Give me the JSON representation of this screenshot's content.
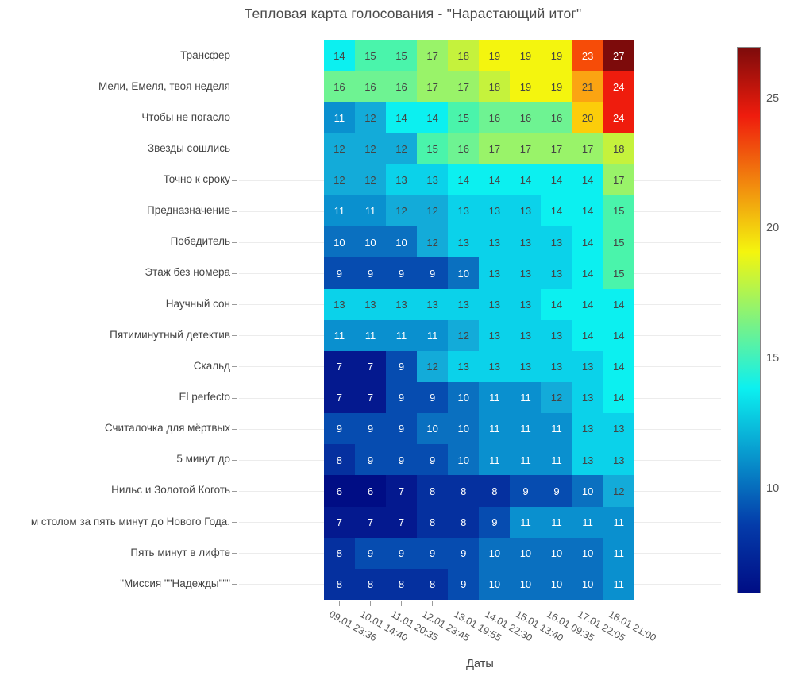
{
  "chart_data": {
    "type": "heatmap",
    "title": "Тепловая карта голосования - \"Нарастающий итог\"",
    "xlabel": "Даты",
    "ylabel": "",
    "x": [
      "09.01 23:36",
      "10.01 14:40",
      "11.01 20:35",
      "12.01 23:45",
      "13.01 19:55",
      "14.01 22:30",
      "15.01 13:40",
      "16.01 09:35",
      "17.01 22:05",
      "18.01 21:00"
    ],
    "rows": [
      {
        "label": "Трансфер",
        "values": [
          14,
          15,
          15,
          17,
          18,
          19,
          19,
          19,
          23,
          27
        ]
      },
      {
        "label": "Мели, Емеля, твоя неделя",
        "values": [
          16,
          16,
          16,
          17,
          17,
          18,
          19,
          19,
          21,
          24
        ]
      },
      {
        "label": "Чтобы не погасло",
        "values": [
          11,
          12,
          14,
          14,
          15,
          16,
          16,
          16,
          20,
          24
        ]
      },
      {
        "label": "Звезды сошлись",
        "values": [
          12,
          12,
          12,
          15,
          16,
          17,
          17,
          17,
          17,
          18
        ]
      },
      {
        "label": "Точно к сроку",
        "values": [
          12,
          12,
          13,
          13,
          14,
          14,
          14,
          14,
          14,
          17
        ]
      },
      {
        "label": "Предназначение",
        "values": [
          11,
          11,
          12,
          12,
          13,
          13,
          13,
          14,
          14,
          15
        ]
      },
      {
        "label": "Победитель",
        "values": [
          10,
          10,
          10,
          12,
          13,
          13,
          13,
          13,
          14,
          15
        ]
      },
      {
        "label": "Этаж без номера",
        "values": [
          9,
          9,
          9,
          9,
          10,
          13,
          13,
          13,
          14,
          15
        ]
      },
      {
        "label": "Научный сон",
        "values": [
          13,
          13,
          13,
          13,
          13,
          13,
          13,
          14,
          14,
          14
        ]
      },
      {
        "label": "Пятиминутный детектив",
        "values": [
          11,
          11,
          11,
          11,
          12,
          13,
          13,
          13,
          14,
          14
        ]
      },
      {
        "label": "Скальд",
        "values": [
          7,
          7,
          9,
          12,
          13,
          13,
          13,
          13,
          13,
          14
        ]
      },
      {
        "label": "El perfecto",
        "values": [
          7,
          7,
          9,
          9,
          10,
          11,
          11,
          12,
          13,
          14
        ]
      },
      {
        "label": "Считалочка для мёртвых",
        "values": [
          9,
          9,
          9,
          10,
          10,
          11,
          11,
          11,
          13,
          13
        ]
      },
      {
        "label": "5 минут до",
        "values": [
          8,
          9,
          9,
          9,
          10,
          11,
          11,
          11,
          13,
          13
        ]
      },
      {
        "label": "Нильс и Золотой Коготь",
        "values": [
          6,
          6,
          7,
          8,
          8,
          8,
          9,
          9,
          10,
          12
        ]
      },
      {
        "label": "м столом за пять минут до Нового Года.",
        "values": [
          7,
          7,
          7,
          8,
          8,
          9,
          11,
          11,
          11,
          11
        ]
      },
      {
        "label": "Пять минут в лифте",
        "values": [
          8,
          9,
          9,
          9,
          9,
          10,
          10,
          10,
          10,
          11
        ]
      },
      {
        "label": "\"Миссия \"\"Надежды\"\"\"",
        "values": [
          8,
          8,
          8,
          8,
          9,
          10,
          10,
          10,
          10,
          11
        ]
      }
    ],
    "zmin": 6,
    "zmax": 27,
    "colorscale_name": "Jet",
    "colorbar_ticks": [
      25,
      20,
      15,
      10
    ],
    "palette": {
      "6": "#000d85",
      "7": "#04198f",
      "8": "#05309f",
      "9": "#064cb0",
      "10": "#0a70c0",
      "11": "#0a90cf",
      "12": "#13abd9",
      "13": "#0bd2ea",
      "14": "#0cf0f0",
      "15": "#4af4ab",
      "16": "#6ef392",
      "17": "#99f369",
      "18": "#c5f23c",
      "19": "#f4f50e",
      "20": "#fccd0a",
      "21": "#fba412",
      "22": "#fc7400",
      "23": "#f64c08",
      "24": "#ef1c0d",
      "25": "#e10000",
      "26": "#b30000",
      "27": "#7d0b0b"
    },
    "gradient_stops": [
      {
        "pos": 0,
        "color": "#000d85"
      },
      {
        "pos": 0.125,
        "color": "#043caa"
      },
      {
        "pos": 0.375,
        "color": "#0cf0f0"
      },
      {
        "pos": 0.625,
        "color": "#f4f50e"
      },
      {
        "pos": 0.875,
        "color": "#ef1c0d"
      },
      {
        "pos": 1,
        "color": "#7d0b0b"
      }
    ],
    "text_rules": {
      "light_color": "#ffffff",
      "dark_color": "#444444",
      "light_below": 12,
      "light_above": 22
    },
    "legend_position": "right-colorbar",
    "grid": "horizontal-faint"
  },
  "colors": {
    "title": "#4c4c4c",
    "axis_text": "#444444",
    "tick_mark": "#9b9b9b",
    "gridline": "#ececec",
    "background": "#ffffff",
    "colorbar_border": "#888888"
  }
}
